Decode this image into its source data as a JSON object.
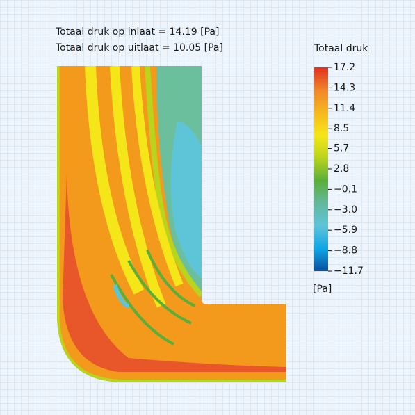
{
  "annotations": [
    "Totaal druk op inlaat = 14.19 [Pa]",
    "Totaal druk op uitlaat = 10.05 [Pa]"
  ],
  "colorbar": {
    "title": "Totaal druk",
    "unit": "[Pa]",
    "clim": [
      -11.7,
      17.2
    ],
    "colors": [
      "#0a4fa0",
      "#0ea6e6",
      "#5ec4d8",
      "#63b89c",
      "#5aae3a",
      "#b9d41c",
      "#f5e619",
      "#f6b81e",
      "#f0862a",
      "#e2301e"
    ],
    "ticks": [
      17.2,
      14.3,
      11.4,
      8.5,
      5.7,
      2.8,
      {
        "value": -0.1,
        "label": "−0.1"
      },
      {
        "value": -3.0,
        "label": "−3.0"
      },
      {
        "value": -5.9,
        "label": "−5.9"
      },
      {
        "value": -8.8,
        "label": "−8.8"
      },
      {
        "value": -11.7,
        "label": "−11.7"
      }
    ]
  }
}
